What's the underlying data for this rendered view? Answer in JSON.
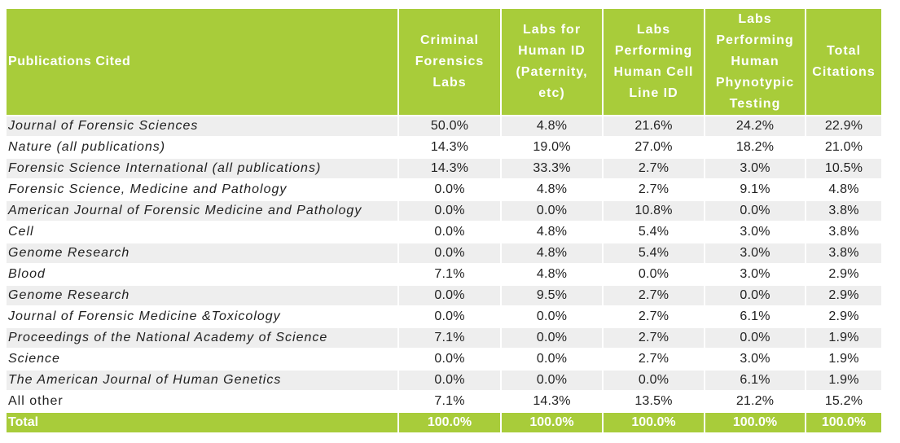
{
  "chart_data": {
    "type": "table",
    "columns": [
      "Publications Cited",
      "Criminal Forensics Labs",
      "Labs for Human ID (Paternity, etc)",
      "Labs Performing Human Cell Line ID",
      "Labs Performing Human Phynotypic Testing",
      "Total Citations"
    ],
    "rows": [
      {
        "name": "Journal of Forensic Sciences",
        "values": [
          "50.0%",
          "4.8%",
          "21.6%",
          "24.2%",
          "22.9%"
        ]
      },
      {
        "name": "Nature (all publications)",
        "values": [
          "14.3%",
          "19.0%",
          "27.0%",
          "18.2%",
          "21.0%"
        ]
      },
      {
        "name": "Forensic Science International (all publications)",
        "values": [
          "14.3%",
          "33.3%",
          "2.7%",
          "3.0%",
          "10.5%"
        ]
      },
      {
        "name": "Forensic Science, Medicine and Pathology",
        "values": [
          "0.0%",
          "4.8%",
          "2.7%",
          "9.1%",
          "4.8%"
        ]
      },
      {
        "name": "American Journal of Forensic Medicine and Pathology",
        "values": [
          "0.0%",
          "0.0%",
          "10.8%",
          "0.0%",
          "3.8%"
        ]
      },
      {
        "name": "Cell",
        "values": [
          "0.0%",
          "4.8%",
          "5.4%",
          "3.0%",
          "3.8%"
        ]
      },
      {
        "name": "Genome Research",
        "values": [
          "0.0%",
          "4.8%",
          "5.4%",
          "3.0%",
          "3.8%"
        ]
      },
      {
        "name": "Blood",
        "values": [
          "7.1%",
          "4.8%",
          "0.0%",
          "3.0%",
          "2.9%"
        ]
      },
      {
        "name": "Genome Research",
        "values": [
          "0.0%",
          "9.5%",
          "2.7%",
          "0.0%",
          "2.9%"
        ]
      },
      {
        "name": "Journal of Forensic Medicine &Toxicology",
        "values": [
          "0.0%",
          "0.0%",
          "2.7%",
          "6.1%",
          "2.9%"
        ]
      },
      {
        "name": "Proceedings of the National Academy of Science",
        "values": [
          "7.1%",
          "0.0%",
          "2.7%",
          "0.0%",
          "1.9%"
        ]
      },
      {
        "name": "Science",
        "values": [
          "0.0%",
          "0.0%",
          "2.7%",
          "3.0%",
          "1.9%"
        ]
      },
      {
        "name": "The American Journal of Human Genetics",
        "values": [
          "0.0%",
          "0.0%",
          "0.0%",
          "6.1%",
          "1.9%"
        ]
      },
      {
        "name": "All other",
        "values": [
          "7.1%",
          "14.3%",
          "13.5%",
          "21.2%",
          "15.2%"
        ],
        "italic": false
      }
    ],
    "total": {
      "name": "Total",
      "values": [
        "100.0%",
        "100.0%",
        "100.0%",
        "100.0%",
        "100.0%"
      ]
    },
    "colors": {
      "header_bg": "#a8cc3a",
      "header_text": "#ffffff",
      "stripe": "#eeeeee"
    }
  }
}
